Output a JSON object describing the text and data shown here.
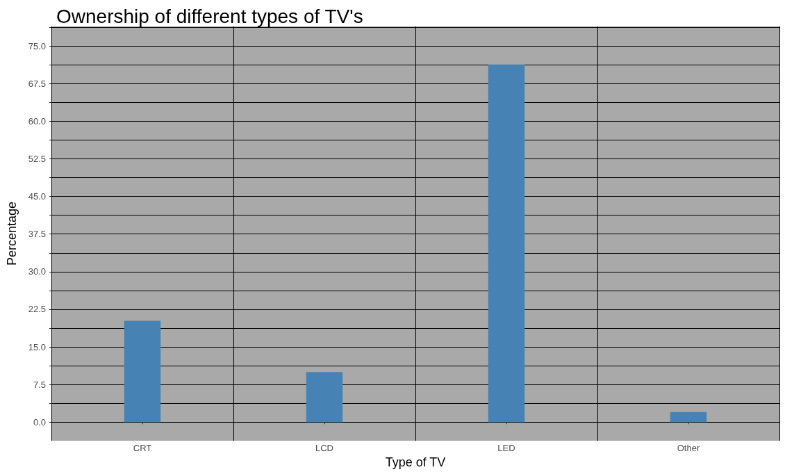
{
  "chart_data": {
    "type": "bar",
    "title": "Ownership of different types of TV's",
    "xlabel": "Type of TV",
    "ylabel": "Percentage",
    "categories": [
      "CRT",
      "LCD",
      "LED",
      "Other"
    ],
    "values": [
      20.2,
      10,
      71.3,
      2
    ],
    "color": "#4682b4",
    "ylim": [
      -3.7,
      78.9
    ],
    "yticks": [
      {
        "value": 0,
        "label": "0.0"
      },
      {
        "value": 3.75,
        "label": null
      },
      {
        "value": 7.5,
        "label": "7.5"
      },
      {
        "value": 11.25,
        "label": null
      },
      {
        "value": 15,
        "label": "15.0"
      },
      {
        "value": 18.75,
        "label": null
      },
      {
        "value": 22.5,
        "label": "22.5"
      },
      {
        "value": 26.25,
        "label": null
      },
      {
        "value": 30,
        "label": "30.0"
      },
      {
        "value": 33.75,
        "label": null
      },
      {
        "value": 37.5,
        "label": "37.5"
      },
      {
        "value": 41.25,
        "label": null
      },
      {
        "value": 45,
        "label": "45.0"
      },
      {
        "value": 48.75,
        "label": null
      },
      {
        "value": 52.5,
        "label": "52.5"
      },
      {
        "value": 56.25,
        "label": null
      },
      {
        "value": 60,
        "label": "60.0"
      },
      {
        "value": 63.75,
        "label": null
      },
      {
        "value": 67.5,
        "label": "67.5"
      },
      {
        "value": 71.25,
        "label": null
      },
      {
        "value": 75,
        "label": "75.0"
      },
      {
        "value": 78.75,
        "label": null
      }
    ],
    "grid": true
  }
}
